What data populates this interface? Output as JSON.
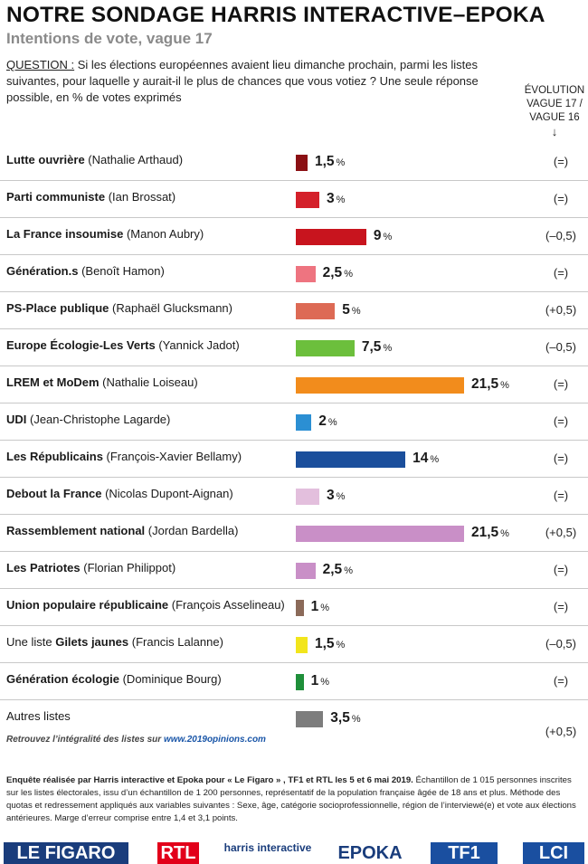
{
  "header": {
    "title": "NOTRE SONDAGE HARRIS INTERACTIVE–EPOKA",
    "subtitle": "Intentions de vote, vague 17",
    "question_label": "QUESTION :",
    "question_text": " Si les élections européennes avaient lieu dimanche prochain, parmi les listes suivantes, pour laquelle y aurait-il le plus de chances que vous votiez ? Une seule réponse possible, en % de votes exprimés",
    "evolution_line1": "ÉVOLUTION",
    "evolution_line2": "VAGUE 17 /",
    "evolution_line3": "VAGUE 16",
    "evolution_arrow": "↓"
  },
  "chart_data": {
    "type": "bar",
    "orientation": "horizontal",
    "unit": "%",
    "categories": [
      "Lutte ouvrière (Nathalie Arthaud)",
      "Parti communiste (Ian Brossat)",
      "La France insoumise (Manon Aubry)",
      "Génération.s (Benoît Hamon)",
      "PS-Place publique (Raphaël Glucksmann)",
      "Europe Écologie-Les Verts (Yannick Jadot)",
      "LREM et MoDem (Nathalie Loiseau)",
      "UDI (Jean-Christophe Lagarde)",
      "Les Républicains (François-Xavier Bellamy)",
      "Debout la France (Nicolas Dupont-Aignan)",
      "Rassemblement national (Jordan Bardella)",
      "Les Patriotes (Florian Philippot)",
      "Union populaire républicaine (François Asselineau)",
      "Une liste Gilets jaunes (Francis Lalanne)",
      "Génération écologie (Dominique Bourg)",
      "Autres listes"
    ],
    "rows": [
      {
        "bold": "Lutte ouvrière",
        "pre": "",
        "rest": " (Nathalie Arthaud)",
        "value": 1.5,
        "label": "1,5",
        "evolution": "(=)",
        "color": "#8b1014"
      },
      {
        "bold": "Parti communiste",
        "pre": "",
        "rest": " (Ian Brossat)",
        "value": 3,
        "label": "3",
        "evolution": "(=)",
        "color": "#d4202a"
      },
      {
        "bold": "La France insoumise",
        "pre": "",
        "rest": " (Manon Aubry)",
        "value": 9,
        "label": "9",
        "evolution": "(–0,5)",
        "color": "#c8141e"
      },
      {
        "bold": "Génération.s",
        "pre": "",
        "rest": " (Benoît Hamon)",
        "value": 2.5,
        "label": "2,5",
        "evolution": "(=)",
        "color": "#ee7480"
      },
      {
        "bold": "PS-Place publique",
        "pre": "",
        "rest": " (Raphaël Glucksmann)",
        "value": 5,
        "label": "5",
        "evolution": "(+0,5)",
        "color": "#dd6a55"
      },
      {
        "bold": "Europe Écologie-Les Verts",
        "pre": "",
        "rest": " (Yannick Jadot)",
        "value": 7.5,
        "label": "7,5",
        "evolution": "(–0,5)",
        "color": "#6cbf3c"
      },
      {
        "bold": "LREM et MoDem",
        "pre": "",
        "rest": " (Nathalie Loiseau)",
        "value": 21.5,
        "label": "21,5",
        "evolution": "(=)",
        "color": "#f28c1c"
      },
      {
        "bold": "UDI",
        "pre": "",
        "rest": " (Jean-Christophe Lagarde)",
        "value": 2,
        "label": "2",
        "evolution": "(=)",
        "color": "#2b8fd3"
      },
      {
        "bold": "Les Républicains",
        "pre": "",
        "rest": " (François-Xavier Bellamy)",
        "value": 14,
        "label": "14",
        "evolution": "(=)",
        "color": "#1b4f9c"
      },
      {
        "bold": "Debout la France",
        "pre": "",
        "rest": " (Nicolas Dupont-Aignan)",
        "value": 3,
        "label": "3",
        "evolution": "(=)",
        "color": "#e3bfdd"
      },
      {
        "bold": "Rassemblement national",
        "pre": "",
        "rest": " (Jordan Bardella)",
        "value": 21.5,
        "label": "21,5",
        "evolution": "(+0,5)",
        "color": "#c98fc7"
      },
      {
        "bold": "Les Patriotes",
        "pre": "",
        "rest": " (Florian Philippot)",
        "value": 2.5,
        "label": "2,5",
        "evolution": "(=)",
        "color": "#c98fc7"
      },
      {
        "bold": "Union populaire républicaine",
        "pre": "",
        "rest": " (François Asselineau)",
        "value": 1,
        "label": "1",
        "evolution": "(=)",
        "color": "#8b6a59"
      },
      {
        "bold": "Gilets jaunes",
        "pre": "Une liste ",
        "rest": " (Francis Lalanne)",
        "value": 1.5,
        "label": "1,5",
        "evolution": "(–0,5)",
        "color": "#f2e51c"
      },
      {
        "bold": "Génération écologie",
        "pre": "",
        "rest": " (Dominique Bourg)",
        "value": 1,
        "label": "1",
        "evolution": "(=)",
        "color": "#1f8f3a"
      },
      {
        "bold": "",
        "pre": "Autres listes",
        "rest": "",
        "value": 3.5,
        "label": "3,5",
        "evolution": "(+0,5)",
        "color": "#7d7d7d"
      }
    ]
  },
  "footer": {
    "source_text": "Retrouvez l’intégralité des listes sur ",
    "source_url": "www.2019opinions.com",
    "note_bold": "Enquête réalisée par Harris interactive et Epoka pour « Le Figaro » , TF1 et RTL les 5 et 6 mai 2019.",
    "note_text": " Échantillon de 1 015 personnes inscrites sur les listes électorales, issu d’un échantillon de 1 200 personnes, représentatif de la population française âgée de 18 ans et plus. Méthode des quotas et redressement appliqués aux variables suivantes : Sexe, âge, catégorie socioprofessionnelle, région de l’interviewé(e) et vote aux élections antérieures. Marge d’erreur comprise entre 1,4 et 3,1 points.",
    "logos": [
      {
        "name": "LE FIGARO",
        "bg": "#1a3d7c",
        "color": "#ffffff"
      },
      {
        "name": "RTL",
        "bg": "#e2001a",
        "color": "#ffffff"
      },
      {
        "name": "harris interactive",
        "bg": "#ffffff",
        "color": "#1a3d7c"
      },
      {
        "name": "EPOKA",
        "bg": "#ffffff",
        "color": "#1a3d7c"
      },
      {
        "name": "TF1",
        "bg": "#1a4fa0",
        "color": "#ffffff"
      },
      {
        "name": "LCI",
        "bg": "#1a4fa0",
        "color": "#ffffff"
      }
    ],
    "pct_suffix": "%"
  }
}
